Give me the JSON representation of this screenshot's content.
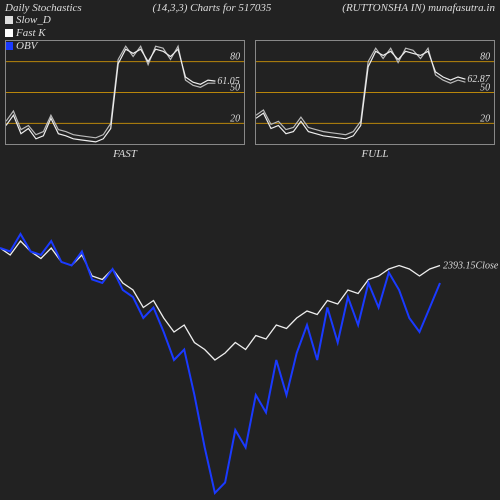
{
  "header": {
    "title_left": "Daily Stochastics",
    "title_mid": "(14,3,3) Charts for 517035",
    "title_right": "(RUTTONSHA IN) munafasutra.in"
  },
  "legend": {
    "slow_d": {
      "label": "Slow_D",
      "color": "#dddddd"
    },
    "fast_k": {
      "label": "Fast K",
      "color": "#ffffff"
    },
    "obv": {
      "label": "OBV",
      "color": "#1a3aff"
    }
  },
  "colors": {
    "bg": "#222222",
    "border": "#888888",
    "ref_line": "#b8860b",
    "line_white": "#eeeeee",
    "line_gray": "#bbbbbb",
    "obv": "#1a3aff",
    "text": "#dddddd"
  },
  "panel_fast": {
    "label": "FAST",
    "value_label": "61.05",
    "ref_lines": [
      20,
      50,
      80
    ],
    "ylim": [
      0,
      100
    ],
    "series_a_color": "#eeeeee",
    "series_b_color": "#bbbbbb",
    "series_a": [
      18,
      28,
      10,
      15,
      5,
      8,
      25,
      10,
      8,
      5,
      4,
      3,
      2,
      5,
      15,
      78,
      92,
      88,
      92,
      80,
      92,
      90,
      85,
      92,
      65,
      60,
      58,
      62,
      61.05
    ],
    "series_b": [
      22,
      32,
      14,
      18,
      9,
      12,
      28,
      14,
      12,
      9,
      8,
      7,
      6,
      9,
      20,
      82,
      95,
      85,
      95,
      77,
      95,
      93,
      82,
      95,
      62,
      57,
      55,
      59,
      59
    ]
  },
  "panel_full": {
    "label": "FULL",
    "value_label": "62.87",
    "ref_lines": [
      20,
      50,
      80
    ],
    "ylim": [
      0,
      100
    ],
    "series_a_color": "#eeeeee",
    "series_b_color": "#bbbbbb",
    "series_a": [
      25,
      30,
      15,
      18,
      10,
      12,
      22,
      12,
      10,
      8,
      7,
      6,
      5,
      8,
      18,
      75,
      90,
      86,
      90,
      82,
      90,
      88,
      86,
      90,
      70,
      65,
      62,
      65,
      62.87
    ],
    "series_b": [
      28,
      33,
      19,
      22,
      14,
      16,
      26,
      16,
      14,
      12,
      11,
      10,
      9,
      12,
      22,
      80,
      93,
      83,
      93,
      79,
      93,
      91,
      83,
      93,
      67,
      62,
      59,
      62,
      60
    ]
  },
  "main": {
    "close_label": "2393.15Close",
    "close_color": "#eeeeee",
    "obv_color": "#1a3aff",
    "close_series": [
      0.72,
      0.7,
      0.74,
      0.71,
      0.69,
      0.72,
      0.68,
      0.67,
      0.7,
      0.64,
      0.63,
      0.66,
      0.62,
      0.6,
      0.55,
      0.57,
      0.52,
      0.48,
      0.5,
      0.45,
      0.43,
      0.4,
      0.42,
      0.45,
      0.43,
      0.47,
      0.46,
      0.5,
      0.49,
      0.52,
      0.54,
      0.53,
      0.57,
      0.56,
      0.6,
      0.59,
      0.63,
      0.64,
      0.66,
      0.67,
      0.66,
      0.64,
      0.66,
      0.67
    ],
    "obv_series": [
      0.72,
      0.71,
      0.76,
      0.71,
      0.7,
      0.74,
      0.68,
      0.67,
      0.71,
      0.63,
      0.62,
      0.66,
      0.6,
      0.58,
      0.52,
      0.55,
      0.48,
      0.4,
      0.43,
      0.3,
      0.15,
      0.02,
      0.05,
      0.2,
      0.15,
      0.3,
      0.25,
      0.4,
      0.3,
      0.42,
      0.5,
      0.4,
      0.55,
      0.45,
      0.58,
      0.5,
      0.62,
      0.55,
      0.65,
      0.6,
      0.52,
      0.48,
      0.55,
      0.62
    ]
  }
}
